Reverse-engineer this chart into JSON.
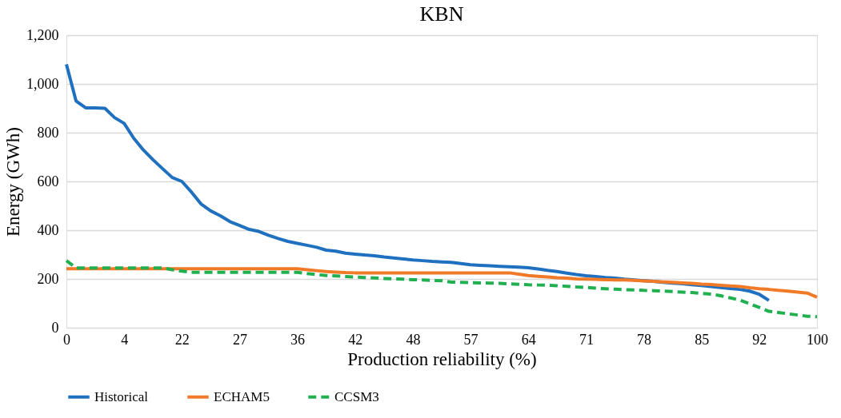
{
  "chart_data": {
    "type": "line",
    "title": "KBN",
    "xlabel": "Production reliability (%)",
    "ylabel": "Energy (GWh)",
    "categories": [
      "0",
      null,
      null,
      null,
      null,
      null,
      "4",
      null,
      null,
      null,
      null,
      null,
      "22",
      null,
      null,
      null,
      null,
      null,
      "27",
      null,
      null,
      null,
      null,
      null,
      "36",
      null,
      null,
      null,
      null,
      null,
      "42",
      null,
      null,
      null,
      null,
      null,
      "48",
      null,
      null,
      null,
      null,
      null,
      "57",
      null,
      null,
      null,
      null,
      null,
      "64",
      null,
      null,
      null,
      null,
      null,
      "71",
      null,
      null,
      null,
      null,
      null,
      "78",
      null,
      null,
      null,
      null,
      null,
      "85",
      null,
      null,
      null,
      null,
      null,
      "92",
      null,
      null,
      null,
      null,
      null,
      "100"
    ],
    "ylim": [
      0,
      1200
    ],
    "yticks": [
      0,
      {
        "value": 200,
        "label": "200"
      },
      400,
      600,
      800,
      {
        "value": 1000,
        "label": "1,000"
      },
      {
        "value": 1200,
        "label": "1,200"
      }
    ],
    "grid": "y",
    "legend": "bottom",
    "marker": "none",
    "series": [
      {
        "name": "Historical",
        "color": "#2070c0",
        "line_style": "solid",
        "values": [
          1080,
          930,
          902,
          902,
          900,
          862,
          838,
          777,
          729,
          689,
          652,
          616,
          600,
          556,
          507,
          479,
          459,
          435,
          419,
          403,
          395,
          379,
          366,
          354,
          346,
          338,
          330,
          318,
          314,
          306,
          302,
          298,
          295,
          290,
          286,
          282,
          278,
          275,
          272,
          270,
          268,
          263,
          258,
          256,
          254,
          252,
          250,
          248,
          246,
          241,
          235,
          230,
          224,
          218,
          213,
          210,
          206,
          203,
          199,
          196,
          193,
          190,
          186,
          183,
          180,
          176,
          173,
          169,
          165,
          161,
          157,
          150,
          137,
          112,
          null,
          null,
          null,
          null,
          null
        ]
      },
      {
        "name": "ECHAM5",
        "color": "#f07a28",
        "line_style": "solid",
        "values": [
          242,
          242,
          242,
          242,
          242,
          242,
          242,
          242,
          242,
          242,
          242,
          242,
          242,
          242,
          242,
          242,
          242,
          242,
          242,
          242,
          242,
          242,
          242,
          242,
          242,
          238,
          234,
          230,
          228,
          226,
          225,
          225,
          225,
          225,
          225,
          225,
          225,
          225,
          225,
          225,
          225,
          225,
          225,
          225,
          225,
          225,
          225,
          220,
          214,
          211,
          208,
          205,
          203,
          200,
          199,
          198,
          197,
          196,
          196,
          194,
          192,
          190,
          188,
          186,
          184,
          182,
          179,
          177,
          174,
          171,
          169,
          164,
          160,
          157,
          153,
          150,
          146,
          142,
          125
        ]
      },
      {
        "name": "CCSM3",
        "color": "#20b050",
        "line_style": "dashed",
        "values": [
          275,
          245,
          245,
          245,
          245,
          245,
          245,
          245,
          245,
          245,
          245,
          238,
          232,
          227,
          227,
          227,
          227,
          227,
          227,
          227,
          227,
          227,
          227,
          227,
          227,
          222,
          218,
          214,
          212,
          210,
          208,
          206,
          204,
          202,
          200,
          199,
          197,
          196,
          194,
          193,
          187,
          186,
          185,
          184,
          183,
          182,
          180,
          178,
          176,
          175,
          174,
          172,
          170,
          167,
          165,
          162,
          160,
          158,
          156,
          155,
          153,
          152,
          150,
          148,
          146,
          144,
          141,
          138,
          131,
          122,
          113,
          98,
          83,
          67,
          62,
          57,
          52,
          47,
          45
        ]
      }
    ]
  }
}
